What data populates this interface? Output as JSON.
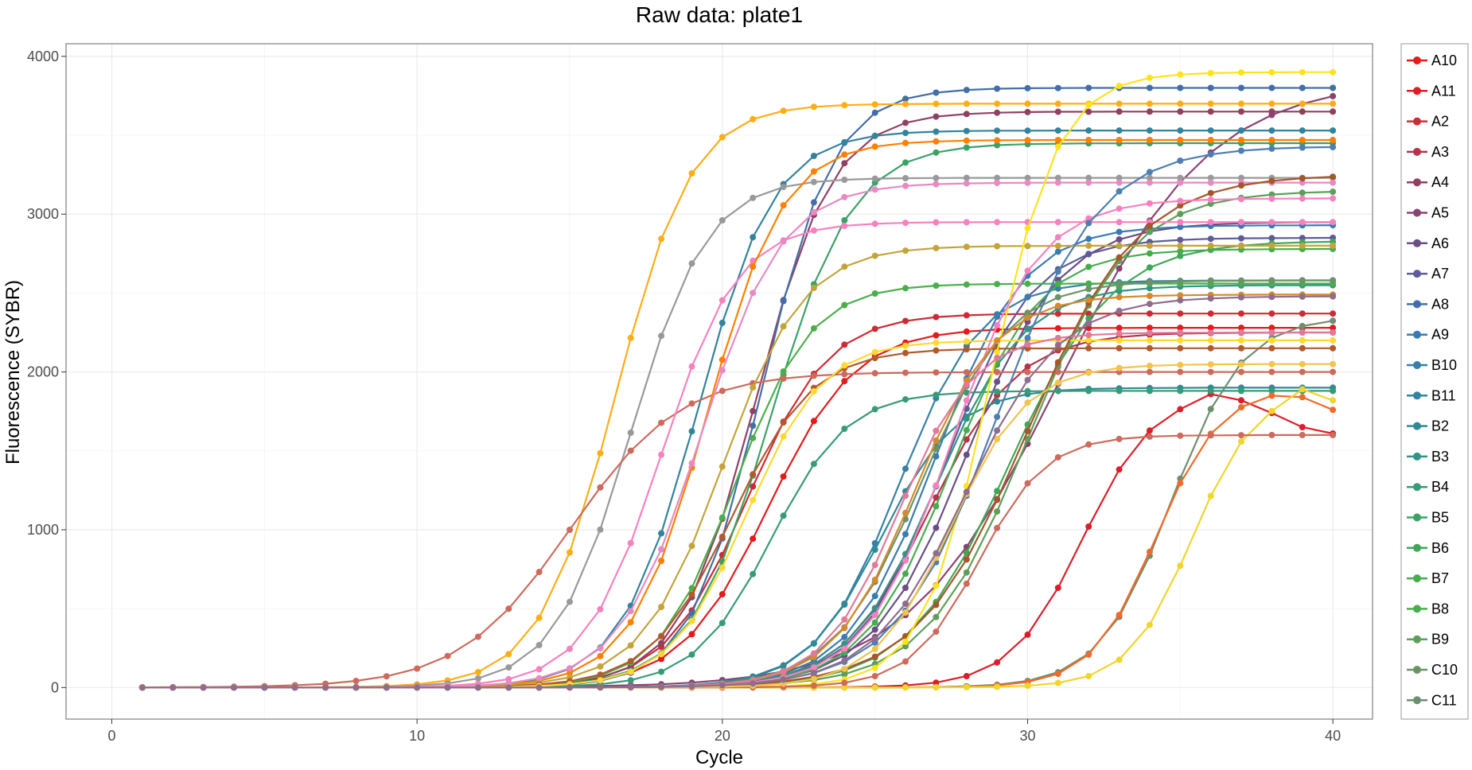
{
  "chart_data": {
    "type": "line",
    "title": "Raw data: plate1",
    "xlabel": "Cycle",
    "ylabel": "Fluorescence (SYBR)",
    "xlim": [
      -1.5,
      41.3
    ],
    "ylim": [
      -200,
      4080
    ],
    "xticks": [
      0,
      10,
      20,
      30,
      40
    ],
    "yticks": [
      0,
      1000,
      2000,
      3000,
      4000
    ],
    "grid": true,
    "legend_position": "right",
    "x": [
      1,
      2,
      3,
      4,
      5,
      6,
      7,
      8,
      9,
      10,
      11,
      12,
      13,
      14,
      15,
      16,
      17,
      18,
      19,
      20,
      21,
      22,
      23,
      24,
      25,
      26,
      27,
      28,
      29,
      30,
      31,
      32,
      33,
      34,
      35,
      36,
      37,
      38,
      39,
      40
    ],
    "series": [
      {
        "name": "A10",
        "color": "#e41a1c",
        "plateau": 2280,
        "midpoint": 21.5,
        "slope": 0.7,
        "baseline": 0
      },
      {
        "name": "A11",
        "color": "#dd1e2a",
        "plateau": 1880,
        "midpoint": 31.8,
        "slope": 0.85,
        "baseline": 0,
        "peak_cycle": 35,
        "decay": [
          1860,
          1820,
          1740,
          1650,
          1610,
          1600
        ]
      },
      {
        "name": "A2",
        "color": "#cf2b34",
        "plateau": 2370,
        "midpoint": 20.8,
        "slope": 0.75,
        "baseline": 0
      },
      {
        "name": "A3",
        "color": "#b6334a",
        "plateau": 2250,
        "midpoint": 26.8,
        "slope": 0.7,
        "baseline": 0
      },
      {
        "name": "A4",
        "color": "#923f64",
        "plateau": 3650,
        "midpoint": 21.1,
        "slope": 0.8,
        "baseline": 0
      },
      {
        "name": "A5",
        "color": "#8b4271",
        "plateau": 3850,
        "midpoint": 31.0,
        "slope": 0.4,
        "baseline": 0
      },
      {
        "name": "A6",
        "color": "#6a4e86",
        "plateau": 2950,
        "midpoint": 28.0,
        "slope": 0.65,
        "baseline": 0
      },
      {
        "name": "A7",
        "color": "#5d5c99",
        "plateau": 2850,
        "midpoint": 27.3,
        "slope": 0.7,
        "baseline": 0
      },
      {
        "name": "A8",
        "color": "#436ea8",
        "plateau": 3800,
        "midpoint": 21.3,
        "slope": 0.85,
        "baseline": 0
      },
      {
        "name": "A9",
        "color": "#3a7bb4",
        "plateau": 2930,
        "midpoint": 27.0,
        "slope": 0.7,
        "baseline": 0
      },
      {
        "name": "B10",
        "color": "#367fa8",
        "plateau": 2580,
        "midpoint": 25.8,
        "slope": 0.75,
        "baseline": 0
      },
      {
        "name": "B11",
        "color": "#32839d",
        "plateau": 3530,
        "midpoint": 19.2,
        "slope": 0.8,
        "baseline": 0
      },
      {
        "name": "B2",
        "color": "#2f8a93",
        "plateau": 1900,
        "midpoint": 25.2,
        "slope": 0.8,
        "baseline": 0
      },
      {
        "name": "B3",
        "color": "#339385",
        "plateau": 2550,
        "midpoint": 27.0,
        "slope": 0.7,
        "baseline": 0
      },
      {
        "name": "B4",
        "color": "#379b76",
        "plateau": 1880,
        "midpoint": 21.6,
        "slope": 0.8,
        "baseline": 0
      },
      {
        "name": "B5",
        "color": "#3ba266",
        "plateau": 3450,
        "midpoint": 21.6,
        "slope": 0.75,
        "baseline": 0
      },
      {
        "name": "B6",
        "color": "#3fa858",
        "plateau": 2830,
        "midpoint": 29.4,
        "slope": 0.6,
        "baseline": 0
      },
      {
        "name": "B7",
        "color": "#46ad4e",
        "plateau": 2780,
        "midpoint": 27.5,
        "slope": 0.7,
        "baseline": 0
      },
      {
        "name": "B8",
        "color": "#4aaf4b",
        "plateau": 2560,
        "midpoint": 20.4,
        "slope": 0.8,
        "baseline": 0
      },
      {
        "name": "B9",
        "color": "#5d9f5a",
        "plateau": 3150,
        "midpoint": 30.0,
        "slope": 0.6,
        "baseline": 0
      },
      {
        "name": "C10",
        "color": "#6a9466",
        "plateau": 2580,
        "midpoint": 26.5,
        "slope": 0.7,
        "baseline": 0
      },
      {
        "name": "C11",
        "color": "#6e8f6f",
        "plateau": 2350,
        "midpoint": 34.7,
        "slope": 0.85,
        "baseline": 0
      },
      {
        "name": "",
        "color": "#ffad14",
        "plateau": 3700,
        "midpoint": 16.5,
        "slope": 0.8,
        "baseline": 0
      },
      {
        "name": "",
        "color": "#999999",
        "plateau": 3230,
        "midpoint": 17.0,
        "slope": 0.8,
        "baseline": 0
      },
      {
        "name": "",
        "color": "#cd6a5c",
        "plateau": 2000,
        "midpoint": 15.0,
        "slope": 0.55,
        "baseline": 0
      },
      {
        "name": "",
        "color": "#f781bf",
        "plateau": 2950,
        "midpoint": 18.0,
        "slope": 0.8,
        "baseline": 0
      },
      {
        "name": "",
        "color": "#ff7f00",
        "plateau": 3470,
        "midpoint": 19.5,
        "slope": 0.8,
        "baseline": 0
      },
      {
        "name": "",
        "color": "#c4a43a",
        "plateau": 2800,
        "midpoint": 20.0,
        "slope": 0.75,
        "baseline": 0
      },
      {
        "name": "",
        "color": "#b15a2e",
        "plateau": 2150,
        "midpoint": 20.3,
        "slope": 0.75,
        "baseline": 0
      },
      {
        "name": "",
        "color": "#e78ac3",
        "plateau": 3200,
        "midpoint": 19.3,
        "slope": 0.75,
        "baseline": 0
      },
      {
        "name": "",
        "color": "#ffd92f",
        "plateau": 2200,
        "midpoint": 20.8,
        "slope": 0.8,
        "baseline": 0
      },
      {
        "name": "",
        "color": "#a65628",
        "plateau": 3250,
        "midpoint": 30.0,
        "slope": 0.55,
        "baseline": 0
      },
      {
        "name": "",
        "color": "#ffe31a",
        "plateau": 3900,
        "midpoint": 28.8,
        "slope": 0.9,
        "baseline": 0
      },
      {
        "name": "",
        "color": "#f06b2a",
        "plateau": 1900,
        "midpoint": 34.2,
        "slope": 0.95,
        "baseline": 0,
        "peak_cycle": 38,
        "decay": [
          1840,
          1760,
          1680
        ]
      },
      {
        "name": "",
        "color": "#f2d52a",
        "plateau": 1900,
        "midpoint": 35.4,
        "slope": 0.95,
        "baseline": 0,
        "peak_cycle": 38,
        "decay": [
          1890,
          1820
        ]
      },
      {
        "name": "",
        "color": "#cd6a5c",
        "plateau": 1600,
        "midpoint": 28.4,
        "slope": 0.9,
        "baseline": 0
      },
      {
        "name": "",
        "color": "#f781bf",
        "plateau": 3100,
        "midpoint": 27.5,
        "slope": 0.7,
        "baseline": 0
      },
      {
        "name": "",
        "color": "#4d7fb0",
        "plateau": 3430,
        "midpoint": 29.0,
        "slope": 0.6,
        "baseline": 0
      },
      {
        "name": "",
        "color": "#d48a2d",
        "plateau": 2490,
        "midpoint": 26.3,
        "slope": 0.75,
        "baseline": 0
      },
      {
        "name": "",
        "color": "#f2c44a",
        "plateau": 2050,
        "midpoint": 27.5,
        "slope": 0.8,
        "baseline": 0
      },
      {
        "name": "",
        "color": "#e07a9a",
        "plateau": 2250,
        "midpoint": 25.8,
        "slope": 0.8,
        "baseline": 0
      },
      {
        "name": "",
        "color": "#8f6d8f",
        "plateau": 2480,
        "midpoint": 28.0,
        "slope": 0.65,
        "baseline": 0
      }
    ]
  }
}
